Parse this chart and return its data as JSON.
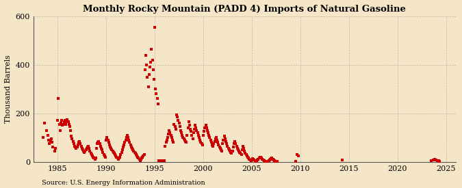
{
  "title": "Monthly Rocky Mountain (PADD 4) Imports of Natural Gasoline",
  "ylabel": "Thousand Barrels",
  "source": "Source: U.S. Energy Information Administration",
  "background_color": "#f5e6c8",
  "plot_bg_color": "#f5e6c8",
  "dot_color": "#cc0000",
  "grid_color": "#999999",
  "xlim": [
    1982.5,
    2026.0
  ],
  "ylim": [
    0,
    600
  ],
  "yticks": [
    0,
    200,
    400,
    600
  ],
  "xticks": [
    1985,
    1990,
    1995,
    2000,
    2005,
    2010,
    2015,
    2020,
    2025
  ],
  "data": [
    [
      1983.5,
      100
    ],
    [
      1983.67,
      160
    ],
    [
      1983.83,
      130
    ],
    [
      1984.0,
      110
    ],
    [
      1984.08,
      90
    ],
    [
      1984.17,
      75
    ],
    [
      1984.25,
      85
    ],
    [
      1984.33,
      95
    ],
    [
      1984.42,
      80
    ],
    [
      1984.5,
      60
    ],
    [
      1984.67,
      45
    ],
    [
      1984.75,
      55
    ],
    [
      1985.0,
      170
    ],
    [
      1985.08,
      260
    ],
    [
      1985.17,
      155
    ],
    [
      1985.25,
      130
    ],
    [
      1985.33,
      160
    ],
    [
      1985.42,
      170
    ],
    [
      1985.5,
      150
    ],
    [
      1985.58,
      155
    ],
    [
      1985.67,
      165
    ],
    [
      1985.75,
      170
    ],
    [
      1985.83,
      155
    ],
    [
      1985.92,
      165
    ],
    [
      1986.0,
      175
    ],
    [
      1986.08,
      165
    ],
    [
      1986.17,
      155
    ],
    [
      1986.25,
      145
    ],
    [
      1986.33,
      130
    ],
    [
      1986.42,
      105
    ],
    [
      1986.5,
      95
    ],
    [
      1986.58,
      85
    ],
    [
      1986.67,
      75
    ],
    [
      1986.75,
      65
    ],
    [
      1986.83,
      60
    ],
    [
      1986.92,
      55
    ],
    [
      1987.0,
      60
    ],
    [
      1987.08,
      70
    ],
    [
      1987.17,
      80
    ],
    [
      1987.25,
      85
    ],
    [
      1987.33,
      75
    ],
    [
      1987.42,
      65
    ],
    [
      1987.5,
      55
    ],
    [
      1987.58,
      50
    ],
    [
      1987.67,
      45
    ],
    [
      1987.75,
      40
    ],
    [
      1987.83,
      45
    ],
    [
      1987.92,
      50
    ],
    [
      1988.0,
      55
    ],
    [
      1988.08,
      60
    ],
    [
      1988.17,
      65
    ],
    [
      1988.25,
      55
    ],
    [
      1988.33,
      45
    ],
    [
      1988.42,
      35
    ],
    [
      1988.5,
      30
    ],
    [
      1988.58,
      25
    ],
    [
      1988.67,
      20
    ],
    [
      1988.75,
      15
    ],
    [
      1988.83,
      10
    ],
    [
      1988.92,
      15
    ],
    [
      1989.0,
      55
    ],
    [
      1989.08,
      75
    ],
    [
      1989.17,
      80
    ],
    [
      1989.25,
      85
    ],
    [
      1989.33,
      75
    ],
    [
      1989.42,
      65
    ],
    [
      1989.5,
      55
    ],
    [
      1989.58,
      50
    ],
    [
      1989.67,
      40
    ],
    [
      1989.75,
      30
    ],
    [
      1989.83,
      25
    ],
    [
      1989.92,
      20
    ],
    [
      1990.0,
      90
    ],
    [
      1990.08,
      100
    ],
    [
      1990.17,
      90
    ],
    [
      1990.25,
      80
    ],
    [
      1990.33,
      70
    ],
    [
      1990.42,
      60
    ],
    [
      1990.5,
      55
    ],
    [
      1990.58,
      50
    ],
    [
      1990.67,
      45
    ],
    [
      1990.75,
      40
    ],
    [
      1990.83,
      35
    ],
    [
      1990.92,
      30
    ],
    [
      1991.0,
      25
    ],
    [
      1991.08,
      20
    ],
    [
      1991.17,
      15
    ],
    [
      1991.25,
      10
    ],
    [
      1991.33,
      15
    ],
    [
      1991.42,
      20
    ],
    [
      1991.5,
      30
    ],
    [
      1991.58,
      40
    ],
    [
      1991.67,
      50
    ],
    [
      1991.75,
      60
    ],
    [
      1991.83,
      70
    ],
    [
      1991.92,
      80
    ],
    [
      1992.0,
      90
    ],
    [
      1992.08,
      100
    ],
    [
      1992.17,
      110
    ],
    [
      1992.25,
      100
    ],
    [
      1992.33,
      90
    ],
    [
      1992.42,
      80
    ],
    [
      1992.5,
      70
    ],
    [
      1992.58,
      60
    ],
    [
      1992.67,
      55
    ],
    [
      1992.75,
      50
    ],
    [
      1992.83,
      45
    ],
    [
      1992.92,
      40
    ],
    [
      1993.0,
      35
    ],
    [
      1993.08,
      30
    ],
    [
      1993.17,
      25
    ],
    [
      1993.25,
      20
    ],
    [
      1993.33,
      15
    ],
    [
      1993.42,
      10
    ],
    [
      1993.5,
      5
    ],
    [
      1993.58,
      10
    ],
    [
      1993.67,
      15
    ],
    [
      1993.75,
      20
    ],
    [
      1993.83,
      25
    ],
    [
      1993.92,
      30
    ],
    [
      1994.0,
      380
    ],
    [
      1994.08,
      440
    ],
    [
      1994.17,
      400
    ],
    [
      1994.25,
      350
    ],
    [
      1994.33,
      310
    ],
    [
      1994.42,
      360
    ],
    [
      1994.5,
      390
    ],
    [
      1994.58,
      410
    ],
    [
      1994.67,
      465
    ],
    [
      1994.75,
      420
    ],
    [
      1994.83,
      380
    ],
    [
      1994.92,
      340
    ],
    [
      1995.0,
      555
    ],
    [
      1995.08,
      300
    ],
    [
      1995.17,
      280
    ],
    [
      1995.25,
      260
    ],
    [
      1995.33,
      240
    ],
    [
      1995.42,
      5
    ],
    [
      1995.5,
      5
    ],
    [
      1995.58,
      5
    ],
    [
      1995.67,
      5
    ],
    [
      1995.75,
      5
    ],
    [
      1995.83,
      5
    ],
    [
      1995.92,
      5
    ],
    [
      1996.0,
      5
    ],
    [
      1996.08,
      65
    ],
    [
      1996.17,
      80
    ],
    [
      1996.25,
      90
    ],
    [
      1996.33,
      100
    ],
    [
      1996.42,
      115
    ],
    [
      1996.5,
      130
    ],
    [
      1996.58,
      120
    ],
    [
      1996.67,
      110
    ],
    [
      1996.75,
      100
    ],
    [
      1996.83,
      90
    ],
    [
      1996.92,
      80
    ],
    [
      1997.0,
      155
    ],
    [
      1997.08,
      145
    ],
    [
      1997.17,
      135
    ],
    [
      1997.25,
      195
    ],
    [
      1997.33,
      185
    ],
    [
      1997.42,
      170
    ],
    [
      1997.5,
      160
    ],
    [
      1997.58,
      145
    ],
    [
      1997.67,
      130
    ],
    [
      1997.75,
      120
    ],
    [
      1997.83,
      110
    ],
    [
      1997.92,
      100
    ],
    [
      1998.0,
      95
    ],
    [
      1998.08,
      90
    ],
    [
      1998.17,
      85
    ],
    [
      1998.25,
      80
    ],
    [
      1998.33,
      110
    ],
    [
      1998.42,
      140
    ],
    [
      1998.5,
      165
    ],
    [
      1998.58,
      150
    ],
    [
      1998.67,
      135
    ],
    [
      1998.75,
      125
    ],
    [
      1998.83,
      110
    ],
    [
      1998.92,
      95
    ],
    [
      1999.0,
      120
    ],
    [
      1999.08,
      135
    ],
    [
      1999.17,
      150
    ],
    [
      1999.25,
      140
    ],
    [
      1999.33,
      130
    ],
    [
      1999.42,
      120
    ],
    [
      1999.5,
      110
    ],
    [
      1999.58,
      100
    ],
    [
      1999.67,
      90
    ],
    [
      1999.75,
      80
    ],
    [
      1999.83,
      75
    ],
    [
      1999.92,
      70
    ],
    [
      2000.0,
      110
    ],
    [
      2000.08,
      125
    ],
    [
      2000.17,
      140
    ],
    [
      2000.25,
      150
    ],
    [
      2000.33,
      140
    ],
    [
      2000.42,
      130
    ],
    [
      2000.5,
      120
    ],
    [
      2000.58,
      110
    ],
    [
      2000.67,
      100
    ],
    [
      2000.75,
      90
    ],
    [
      2000.83,
      80
    ],
    [
      2000.92,
      70
    ],
    [
      2001.0,
      65
    ],
    [
      2001.08,
      75
    ],
    [
      2001.17,
      85
    ],
    [
      2001.25,
      95
    ],
    [
      2001.33,
      100
    ],
    [
      2001.42,
      90
    ],
    [
      2001.5,
      80
    ],
    [
      2001.58,
      70
    ],
    [
      2001.67,
      60
    ],
    [
      2001.75,
      55
    ],
    [
      2001.83,
      50
    ],
    [
      2001.92,
      45
    ],
    [
      2002.0,
      75
    ],
    [
      2002.08,
      90
    ],
    [
      2002.17,
      105
    ],
    [
      2002.25,
      95
    ],
    [
      2002.33,
      85
    ],
    [
      2002.42,
      75
    ],
    [
      2002.5,
      65
    ],
    [
      2002.58,
      55
    ],
    [
      2002.67,
      50
    ],
    [
      2002.75,
      45
    ],
    [
      2002.83,
      40
    ],
    [
      2002.92,
      35
    ],
    [
      2003.0,
      45
    ],
    [
      2003.08,
      60
    ],
    [
      2003.17,
      75
    ],
    [
      2003.25,
      85
    ],
    [
      2003.33,
      75
    ],
    [
      2003.42,
      65
    ],
    [
      2003.5,
      55
    ],
    [
      2003.58,
      50
    ],
    [
      2003.67,
      45
    ],
    [
      2003.75,
      40
    ],
    [
      2003.83,
      35
    ],
    [
      2003.92,
      30
    ],
    [
      2004.0,
      50
    ],
    [
      2004.08,
      65
    ],
    [
      2004.17,
      55
    ],
    [
      2004.25,
      45
    ],
    [
      2004.33,
      35
    ],
    [
      2004.42,
      30
    ],
    [
      2004.5,
      25
    ],
    [
      2004.58,
      20
    ],
    [
      2004.67,
      15
    ],
    [
      2004.75,
      10
    ],
    [
      2004.83,
      8
    ],
    [
      2004.92,
      5
    ],
    [
      2005.0,
      8
    ],
    [
      2005.08,
      12
    ],
    [
      2005.17,
      10
    ],
    [
      2005.25,
      7
    ],
    [
      2005.33,
      5
    ],
    [
      2005.42,
      3
    ],
    [
      2005.5,
      5
    ],
    [
      2005.58,
      8
    ],
    [
      2005.67,
      10
    ],
    [
      2005.75,
      15
    ],
    [
      2005.83,
      20
    ],
    [
      2005.92,
      18
    ],
    [
      2006.0,
      15
    ],
    [
      2006.08,
      10
    ],
    [
      2006.17,
      8
    ],
    [
      2006.25,
      5
    ],
    [
      2006.33,
      3
    ],
    [
      2006.42,
      2
    ],
    [
      2006.5,
      1
    ],
    [
      2006.58,
      2
    ],
    [
      2006.67,
      3
    ],
    [
      2006.75,
      5
    ],
    [
      2006.83,
      8
    ],
    [
      2006.92,
      10
    ],
    [
      2007.0,
      12
    ],
    [
      2007.08,
      15
    ],
    [
      2007.17,
      10
    ],
    [
      2007.25,
      8
    ],
    [
      2007.33,
      5
    ],
    [
      2007.42,
      3
    ],
    [
      2007.5,
      2
    ],
    [
      2007.58,
      1
    ],
    [
      2009.5,
      2
    ],
    [
      2009.67,
      30
    ],
    [
      2009.83,
      25
    ],
    [
      2014.33,
      8
    ],
    [
      2023.5,
      5
    ],
    [
      2023.67,
      8
    ],
    [
      2023.83,
      10
    ],
    [
      2024.0,
      7
    ],
    [
      2024.08,
      6
    ],
    [
      2024.17,
      5
    ],
    [
      2024.25,
      4
    ],
    [
      2024.33,
      3
    ]
  ]
}
